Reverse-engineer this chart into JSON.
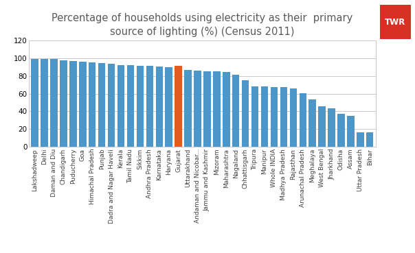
{
  "title": "Percentage of households using electricity as their  primary\nsource of lighting (%) (Census 2011)",
  "categories": [
    "Lakshadweep",
    "Delhi",
    "Daman and Diu",
    "Chandigarh",
    "Puducherry",
    "Goa",
    "Himachal Pradesh",
    "Punjab",
    "Dadra and Nagar Haveli",
    "Kerala",
    "Tamil Nadu",
    "Sikkim",
    "Andhra Pradesh",
    "Karnataka",
    "Haryana",
    "Gujarat",
    "Uttarakhand",
    "Andaman and Nicobar...",
    "Jammu and Kashmir",
    "Mizoram",
    "Maharashtra",
    "Nagaland",
    "Chhattisgarh",
    "Tripura",
    "Manipur",
    "Whole INDIA",
    "Madhya Pradesh",
    "Rajasthan",
    "Arunachal Pradesh",
    "Meghalaya",
    "West Bengal",
    "Jharkhand",
    "Odisha",
    "Assam",
    "Uttar Pradesh",
    "Bihar"
  ],
  "values": [
    99.5,
    99.0,
    98.8,
    97.8,
    97.0,
    96.2,
    95.5,
    94.8,
    93.7,
    92.4,
    92.3,
    91.3,
    91.2,
    90.4,
    90.2,
    91.0,
    87.0,
    86.0,
    85.2,
    85.0,
    84.5,
    81.5,
    75.5,
    68.0,
    68.0,
    67.5,
    67.2,
    65.5,
    60.5,
    53.5,
    45.5,
    43.0,
    37.0,
    35.0,
    16.0,
    16.5
  ],
  "bar_color_default": "#4d96c9",
  "bar_color_highlight": "#e05c20",
  "highlight_index": 15,
  "ylim": [
    0,
    120
  ],
  "yticks": [
    0,
    20,
    40,
    60,
    80,
    100,
    120
  ],
  "background_color": "#ffffff",
  "grid_color": "#c8c8c8",
  "title_color": "#595959",
  "title_fontsize": 10.5,
  "tick_fontsize": 6.5,
  "ytick_fontsize": 7.5,
  "twr_box_color": "#d93025",
  "twr_text_color": "#ffffff"
}
